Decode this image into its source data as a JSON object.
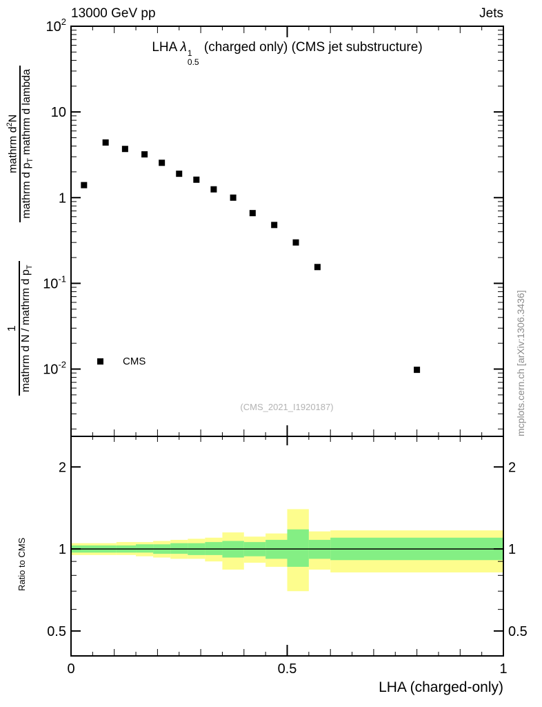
{
  "header": {
    "left": "13000 GeV pp",
    "right": "Jets"
  },
  "title": {
    "prefix": "LHA ",
    "symbol": "λ",
    "sup": "1",
    "sub": "0.5",
    "suffix": " (charged only) (CMS jet substructure)"
  },
  "watermark": "(CMS_2021_I1920187)",
  "legend": {
    "label": "CMS"
  },
  "credit": "mcplots.cern.ch [arXiv:1306.3436]",
  "ylabel": {
    "f1_num": "1",
    "f1_den": "mathrm d N / mathrm d p",
    "f1_den_sub": "T",
    "f2_num_a": "mathrm d",
    "f2_num_sup": "2",
    "f2_num_b": "N",
    "f2_den_a": "mathrm d p",
    "f2_den_sub": "T",
    "f2_den_b": " mathrm d lambda"
  },
  "ratio_ylabel": "Ratio to CMS",
  "xlabel": "LHA (charged-only)",
  "chart_data": {
    "type": "scatter",
    "title": "LHA lambda^1_0.5 (charged only) (CMS jet substructure)",
    "xlabel": "LHA (charged-only)",
    "ylabel": "1/(dN/dpT) d2N/(dpT dlambda)",
    "xlim": [
      0,
      1
    ],
    "xticks": [
      {
        "v": 0,
        "label": "0"
      },
      {
        "v": 0.5,
        "label": "0.5"
      },
      {
        "v": 1,
        "label": "1"
      }
    ],
    "top_panel": {
      "yscale": "log",
      "ylim": [
        0.00164,
        100
      ],
      "series_name": "CMS",
      "points": [
        [
          0.03,
          1.4
        ],
        [
          0.08,
          4.4
        ],
        [
          0.125,
          3.7
        ],
        [
          0.17,
          3.2
        ],
        [
          0.21,
          2.55
        ],
        [
          0.25,
          1.9
        ],
        [
          0.29,
          1.62
        ],
        [
          0.33,
          1.25
        ],
        [
          0.375,
          1.0
        ],
        [
          0.42,
          0.66
        ],
        [
          0.47,
          0.48
        ],
        [
          0.52,
          0.3
        ],
        [
          0.57,
          0.155
        ],
        [
          0.8,
          0.0098
        ]
      ],
      "ytick_labels": [
        {
          "v": 100,
          "base": "10",
          "exp": "2"
        },
        {
          "v": 10,
          "base": "10",
          "exp": ""
        },
        {
          "v": 1,
          "base": "1",
          "exp": ""
        },
        {
          "v": 0.1,
          "base": "10",
          "exp": "-1"
        },
        {
          "v": 0.01,
          "base": "10",
          "exp": "-2"
        }
      ]
    },
    "ratio_panel": {
      "yscale": "log",
      "ylim": [
        0.405,
        2.59
      ],
      "reference_line": 1,
      "yticks": [
        {
          "v": 0.5,
          "label": "0.5"
        },
        {
          "v": 1,
          "label": "1"
        },
        {
          "v": 2,
          "label": "2"
        }
      ],
      "minor_yticks": [
        0.6,
        0.7,
        0.8,
        0.9
      ],
      "bin_edges": [
        0,
        0.055,
        0.105,
        0.15,
        0.19,
        0.23,
        0.27,
        0.31,
        0.35,
        0.4,
        0.45,
        0.5,
        0.55,
        0.6,
        1
      ],
      "bands": {
        "yellow_lo": [
          0.95,
          0.95,
          0.95,
          0.94,
          0.93,
          0.92,
          0.92,
          0.9,
          0.84,
          0.89,
          0.86,
          0.7,
          0.84,
          0.82
        ],
        "yellow_hi": [
          1.05,
          1.05,
          1.06,
          1.06,
          1.07,
          1.08,
          1.09,
          1.1,
          1.15,
          1.11,
          1.14,
          1.4,
          1.16,
          1.17
        ],
        "green_lo": [
          0.97,
          0.97,
          0.97,
          0.97,
          0.96,
          0.96,
          0.95,
          0.95,
          0.93,
          0.94,
          0.92,
          0.86,
          0.92,
          0.91
        ],
        "green_hi": [
          1.03,
          1.03,
          1.03,
          1.04,
          1.04,
          1.05,
          1.05,
          1.06,
          1.07,
          1.06,
          1.08,
          1.18,
          1.08,
          1.1
        ]
      }
    },
    "colors": {
      "band_outer": "#fdfd8d",
      "band_inner": "#84ef84",
      "marker": "#000000",
      "frame": "#000000",
      "credit_gray": "#8a8a8a",
      "watermark_gray": "#b3b3b3"
    }
  }
}
